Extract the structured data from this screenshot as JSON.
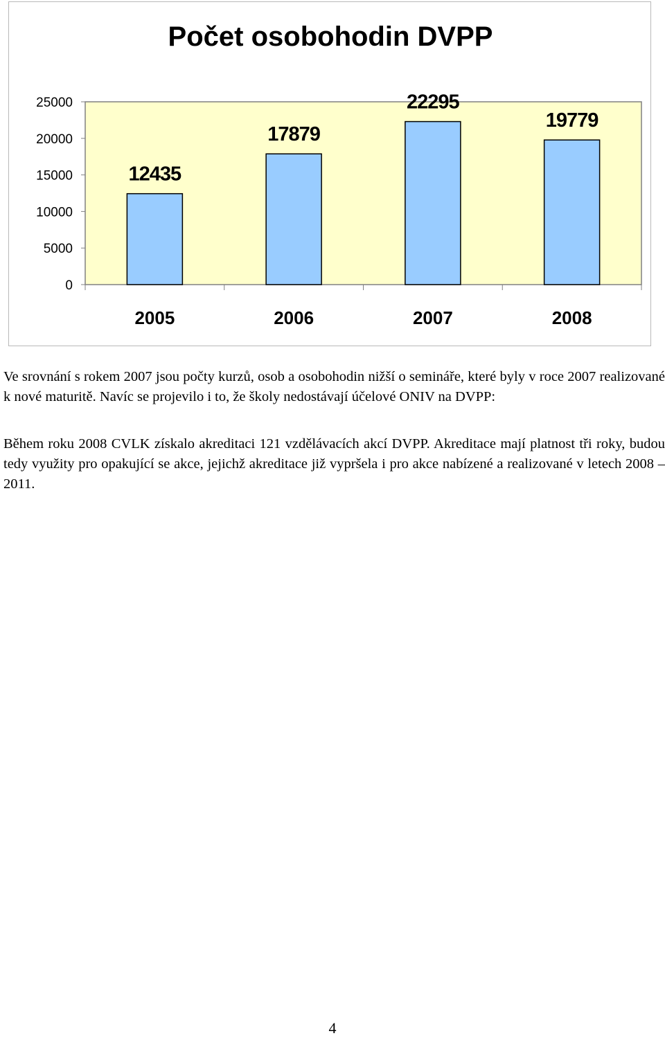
{
  "chart_data": {
    "type": "bar",
    "title": "Počet osobohodin DVPP",
    "categories": [
      "2005",
      "2006",
      "2007",
      "2008"
    ],
    "values": [
      12435,
      17879,
      22295,
      19779
    ],
    "data_labels": [
      "12435",
      "17879",
      "22295",
      "19779"
    ],
    "y_ticks": [
      0,
      5000,
      10000,
      15000,
      20000,
      25000
    ],
    "y_tick_labels": [
      "0",
      "5000",
      "10000",
      "15000",
      "20000",
      "25000"
    ],
    "ylim": [
      0,
      25000
    ],
    "xlabel": "",
    "ylabel": "",
    "grid": false,
    "legend": "none",
    "colors": {
      "bar_fill": "#99ccff",
      "bar_stroke": "#000000",
      "plot_background": "#ffffcc",
      "plot_border": "#808080"
    }
  },
  "text": {
    "paragraph1": "Ve srovnání s rokem 2007 jsou počty kurzů, osob a osobohodin nižší o semináře, které byly v roce 2007 realizované k nové maturitě. Navíc se projevilo i to, že školy nedostávají účelové ONIV na DVPP:",
    "paragraph2": "Během roku 2008 CVLK získalo akreditaci 121 vzdělávacích akcí DVPP. Akreditace mají platnost tři roky, budou tedy využity pro opakující se akce, jejichž akreditace již vypršela i pro akce nabízené a realizované v letech 2008 – 2011.",
    "page_number": "4"
  }
}
